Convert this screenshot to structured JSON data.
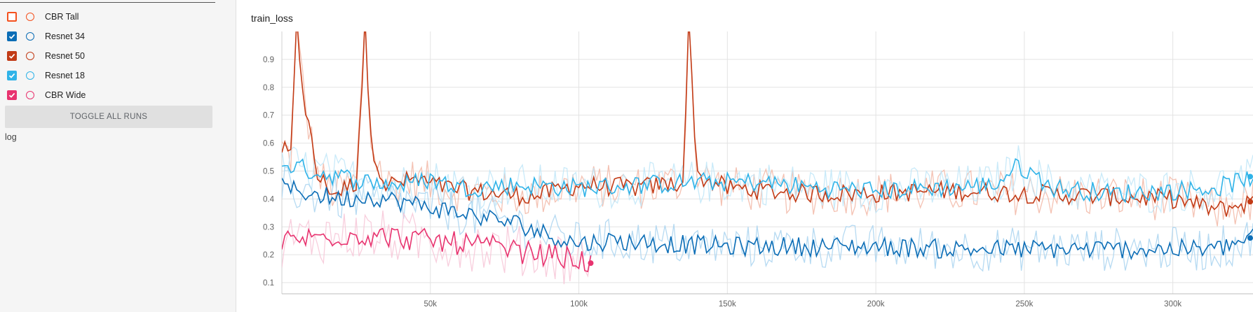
{
  "sidebar": {
    "runs": [
      {
        "label": "CBR Tall",
        "checked": false,
        "color": "#f4511e"
      },
      {
        "label": "Resnet 34",
        "checked": true,
        "color": "#0b6db6"
      },
      {
        "label": "Resnet 50",
        "checked": true,
        "color": "#c23b16"
      },
      {
        "label": "Resnet 18",
        "checked": true,
        "color": "#2fb3e8"
      },
      {
        "label": "CBR Wide",
        "checked": true,
        "color": "#e8336f"
      }
    ],
    "toggle_label": "TOGGLE ALL RUNS",
    "log_label": "log"
  },
  "chart_data": {
    "type": "line",
    "title": "train_loss",
    "xlabel": "",
    "ylabel": "",
    "x_ticks": [
      50000,
      100000,
      150000,
      200000,
      250000,
      300000
    ],
    "x_tick_labels": [
      "50k",
      "100k",
      "150k",
      "200k",
      "250k",
      "300k"
    ],
    "y_ticks": [
      0.1,
      0.2,
      0.3,
      0.4,
      0.5,
      0.6,
      0.7,
      0.8,
      0.9
    ],
    "y_tick_labels": [
      "0.1",
      "0.2",
      "0.3",
      "0.4",
      "0.5",
      "0.6",
      "0.7",
      "0.8",
      "0.9"
    ],
    "xlim": [
      0,
      327000
    ],
    "ylim": [
      0.06,
      1.0
    ],
    "grid": true,
    "legend": "none",
    "series": [
      {
        "name": "Resnet 50",
        "color": "#c23b16",
        "raw_color": "#f2b7a6",
        "x": [
          0,
          3000,
          5000,
          8000,
          12000,
          18000,
          25000,
          28000,
          30000,
          35000,
          45000,
          55000,
          70000,
          85000,
          100000,
          120000,
          135000,
          137000,
          140000,
          150000,
          175000,
          200000,
          225000,
          250000,
          275000,
          300000,
          315000,
          327000
        ],
        "y": [
          0.58,
          0.55,
          1.0,
          0.72,
          0.48,
          0.42,
          0.46,
          1.0,
          0.6,
          0.45,
          0.47,
          0.44,
          0.42,
          0.41,
          0.45,
          0.44,
          0.46,
          1.0,
          0.48,
          0.44,
          0.42,
          0.42,
          0.43,
          0.42,
          0.41,
          0.4,
          0.36,
          0.39
        ]
      },
      {
        "name": "Resnet 18",
        "color": "#2fb3e8",
        "raw_color": "#bfe6f8",
        "x": [
          0,
          10000,
          20000,
          30000,
          40000,
          50000,
          60000,
          80000,
          100000,
          120000,
          140000,
          160000,
          180000,
          200000,
          220000,
          240000,
          248000,
          260000,
          280000,
          300000,
          315000,
          327000
        ],
        "y": [
          0.53,
          0.5,
          0.48,
          0.46,
          0.45,
          0.47,
          0.44,
          0.45,
          0.44,
          0.45,
          0.46,
          0.46,
          0.44,
          0.43,
          0.44,
          0.45,
          0.52,
          0.44,
          0.42,
          0.43,
          0.44,
          0.48
        ]
      },
      {
        "name": "Resnet 34",
        "color": "#0b6db6",
        "raw_color": "#a9d4f0",
        "x": [
          0,
          10000,
          20000,
          30000,
          40000,
          50000,
          60000,
          70000,
          80000,
          90000,
          100000,
          110000,
          130000,
          150000,
          175000,
          200000,
          225000,
          250000,
          275000,
          300000,
          315000,
          327000
        ],
        "y": [
          0.44,
          0.42,
          0.4,
          0.41,
          0.39,
          0.37,
          0.35,
          0.33,
          0.31,
          0.27,
          0.24,
          0.25,
          0.24,
          0.23,
          0.23,
          0.23,
          0.22,
          0.22,
          0.22,
          0.22,
          0.22,
          0.26
        ]
      },
      {
        "name": "CBR Wide",
        "color": "#e8336f",
        "raw_color": "#f7c6d7",
        "x": [
          0,
          10000,
          20000,
          30000,
          40000,
          50000,
          60000,
          70000,
          80000,
          90000,
          100000,
          104000
        ],
        "y": [
          0.25,
          0.26,
          0.27,
          0.27,
          0.26,
          0.25,
          0.24,
          0.23,
          0.21,
          0.2,
          0.18,
          0.17
        ]
      }
    ]
  }
}
